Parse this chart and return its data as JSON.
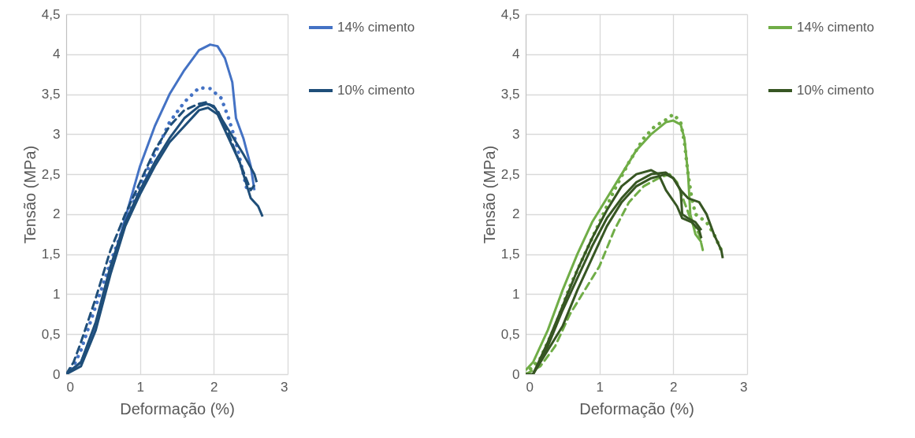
{
  "chart_data": [
    {
      "type": "line",
      "xlabel": "Deformação (%)",
      "ylabel": "Tensão (MPa)",
      "xlim": [
        0,
        3
      ],
      "ylim": [
        0,
        4.5
      ],
      "xticks": [
        0,
        1,
        2,
        3
      ],
      "yticks": [
        0,
        {
          "value": 0.5,
          "label": "0,5"
        },
        1,
        {
          "value": 1.5,
          "label": "1,5"
        },
        2,
        {
          "value": 2.5,
          "label": "2,5"
        },
        3,
        {
          "value": 3.5,
          "label": "3,5"
        },
        4,
        {
          "value": 4.5,
          "label": "4,5"
        }
      ],
      "grid": true,
      "legend": "right",
      "series": [
        {
          "name": "14% cimento",
          "color": "#4472c4",
          "line_style": "solid",
          "x": [
            0,
            0.2,
            0.4,
            0.6,
            0.8,
            1,
            1.2,
            1.4,
            1.6,
            1.8,
            1.95,
            2.05,
            2.15,
            2.25,
            2.3,
            2.4,
            2.5,
            2.55
          ],
          "values": [
            0,
            0.15,
            0.6,
            1.3,
            1.95,
            2.6,
            3.1,
            3.5,
            3.8,
            4.05,
            4.12,
            4.1,
            3.95,
            3.65,
            3.2,
            2.95,
            2.6,
            2.3
          ]
        },
        {
          "color": "#4472c4",
          "line_style": "dotted",
          "x": [
            0,
            0.1,
            0.2,
            0.4,
            0.6,
            0.8,
            1,
            1.2,
            1.4,
            1.6,
            1.8,
            1.95,
            2.1,
            2.2,
            2.3,
            2.4,
            2.45
          ],
          "values": [
            0,
            0.1,
            0.3,
            0.85,
            1.4,
            1.9,
            2.35,
            2.75,
            3.15,
            3.4,
            3.58,
            3.57,
            3.45,
            3.2,
            2.9,
            2.5,
            2.3
          ]
        },
        {
          "name": "10% cimento",
          "color": "#1f4e79",
          "line_style": "solid",
          "x": [
            0,
            0.2,
            0.4,
            0.6,
            0.8,
            1,
            1.2,
            1.4,
            1.6,
            1.8,
            1.92,
            2.05,
            2.2,
            2.35,
            2.45,
            2.5,
            2.6,
            2.66
          ],
          "values": [
            0,
            0.1,
            0.55,
            1.25,
            1.85,
            2.25,
            2.6,
            2.9,
            3.1,
            3.3,
            3.33,
            3.25,
            2.95,
            2.65,
            2.35,
            2.2,
            2.1,
            1.97
          ]
        },
        {
          "color": "#1f4e79",
          "line_style": "solid",
          "x": [
            0,
            0.2,
            0.4,
            0.6,
            0.8,
            1,
            1.2,
            1.4,
            1.6,
            1.8,
            1.9,
            2,
            2.2,
            2.4,
            2.55,
            2.58
          ],
          "values": [
            0,
            0.15,
            0.65,
            1.35,
            1.9,
            2.3,
            2.65,
            2.95,
            3.2,
            3.35,
            3.38,
            3.35,
            3.05,
            2.75,
            2.5,
            2.4
          ]
        },
        {
          "color": "#1f4e79",
          "line_style": "dashed",
          "x": [
            0,
            0.1,
            0.2,
            0.4,
            0.6,
            0.8,
            1,
            1.2,
            1.4,
            1.6,
            1.8,
            1.9,
            2.05,
            2.2,
            2.35,
            2.5,
            2.58
          ],
          "values": [
            0,
            0.15,
            0.4,
            0.95,
            1.55,
            2,
            2.4,
            2.8,
            3.1,
            3.3,
            3.38,
            3.4,
            3.3,
            3,
            2.65,
            2.3,
            2.4
          ]
        }
      ]
    },
    {
      "type": "line",
      "xlabel": "Deformação (%)",
      "ylabel": "Tensão (MPa)",
      "xlim": [
        0,
        3
      ],
      "ylim": [
        0,
        4.5
      ],
      "xticks": [
        0,
        1,
        2,
        3
      ],
      "yticks": [
        0,
        {
          "value": 0.5,
          "label": "0,5"
        },
        1,
        {
          "value": 1.5,
          "label": "1,5"
        },
        2,
        {
          "value": 2.5,
          "label": "2,5"
        },
        3,
        {
          "value": 3.5,
          "label": "3,5"
        },
        4,
        {
          "value": 4.5,
          "label": "4,5"
        }
      ],
      "grid": true,
      "legend": "right",
      "series": [
        {
          "name": "14% cimento",
          "color": "#70ad47",
          "line_style": "solid",
          "x": [
            0,
            0.1,
            0.3,
            0.5,
            0.7,
            0.9,
            1.1,
            1.3,
            1.5,
            1.7,
            1.9,
            2,
            2.1,
            2.15,
            2.2,
            2.23,
            2.3,
            2.38
          ],
          "values": [
            0.05,
            0.15,
            0.55,
            1.05,
            1.5,
            1.9,
            2.2,
            2.5,
            2.8,
            3,
            3.15,
            3.17,
            3.12,
            2.95,
            2.5,
            2,
            1.75,
            1.65
          ]
        },
        {
          "color": "#70ad47",
          "line_style": "dotted",
          "x": [
            0,
            0.2,
            0.4,
            0.6,
            0.8,
            1,
            1.2,
            1.4,
            1.6,
            1.75,
            1.9,
            2,
            2.1,
            2.15,
            2.2,
            2.25,
            2.3,
            2.45,
            2.55,
            2.65
          ],
          "values": [
            0,
            0.2,
            0.6,
            1.1,
            1.5,
            1.9,
            2.3,
            2.65,
            2.95,
            3.1,
            3.18,
            3.25,
            3.15,
            2.9,
            2.5,
            2.2,
            2,
            1.9,
            1.75,
            1.55
          ]
        },
        {
          "color": "#70ad47",
          "line_style": "dashed",
          "x": [
            0,
            0.2,
            0.4,
            0.6,
            0.8,
            1,
            1.2,
            1.4,
            1.6,
            1.8,
            1.95,
            2.05,
            2.15,
            2.25,
            2.35,
            2.4
          ],
          "values": [
            0,
            0.1,
            0.35,
            0.75,
            1.05,
            1.35,
            1.8,
            2.15,
            2.35,
            2.45,
            2.5,
            2.4,
            2.15,
            1.9,
            1.75,
            1.55
          ]
        },
        {
          "name": "10% cimento",
          "color": "#375623",
          "line_style": "solid",
          "x": [
            0,
            0.1,
            0.3,
            0.5,
            0.7,
            0.9,
            1.1,
            1.3,
            1.5,
            1.7,
            1.9,
            2,
            2.1,
            2.2,
            2.35,
            2.45,
            2.55,
            2.65,
            2.67
          ],
          "values": [
            0,
            0,
            0.35,
            0.8,
            1.2,
            1.6,
            1.95,
            2.2,
            2.4,
            2.5,
            2.52,
            2.45,
            2.3,
            2.2,
            2.15,
            2,
            1.75,
            1.55,
            1.45
          ]
        },
        {
          "color": "#375623",
          "line_style": "solid",
          "x": [
            0.1,
            0.3,
            0.5,
            0.7,
            0.9,
            1.1,
            1.3,
            1.5,
            1.7,
            1.8,
            1.9,
            2.05,
            2.12,
            2.25,
            2.35,
            2.38
          ],
          "values": [
            0,
            0.4,
            0.85,
            1.3,
            1.7,
            2.05,
            2.35,
            2.5,
            2.55,
            2.5,
            2.3,
            2.1,
            1.95,
            1.9,
            1.8,
            1.7
          ]
        },
        {
          "color": "#375623",
          "line_style": "solid",
          "x": [
            0.1,
            0.3,
            0.5,
            0.7,
            0.9,
            1.1,
            1.3,
            1.5,
            1.7,
            1.9,
            2,
            2.1,
            2.12,
            2.2,
            2.3,
            2.38
          ],
          "values": [
            0,
            0.3,
            0.6,
            1.05,
            1.45,
            1.85,
            2.15,
            2.35,
            2.45,
            2.5,
            2.45,
            2.3,
            2,
            1.95,
            1.9,
            1.8
          ]
        }
      ]
    }
  ]
}
